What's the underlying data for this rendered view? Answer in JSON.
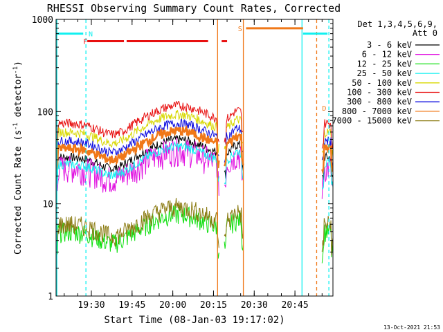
{
  "chart_data": {
    "type": "line",
    "title": "RHESSI Observing Summary Count Rates, Corrected",
    "xlabel": "Start Time (08-Jan-03 19:17:02)",
    "ylabel_main": "Corrected Count Rate (s",
    "ylabel_sup1": "-1",
    "ylabel_mid": " detector",
    "ylabel_sup2": "-1",
    "ylabel_end": ")",
    "yscale": "log",
    "ylim": [
      1,
      1000
    ],
    "xlim_min": [
      17,
      119
    ],
    "y_ticks": [
      {
        "value": 1,
        "label": "1"
      },
      {
        "value": 10,
        "label": "10"
      },
      {
        "value": 100,
        "label": "100"
      },
      {
        "value": 1000,
        "label": "1000"
      }
    ],
    "x_ticks": [
      {
        "value": 30,
        "label": "19:30"
      },
      {
        "value": 45,
        "label": "19:45"
      },
      {
        "value": 60,
        "label": "20:00"
      },
      {
        "value": 75,
        "label": "20:15"
      },
      {
        "value": 90,
        "label": "20:30"
      },
      {
        "value": 105,
        "label": "20:45"
      }
    ],
    "legend_header": [
      "Det 1,3,4,5,6,9,",
      "Att 0"
    ],
    "series": [
      {
        "name": "3 - 6 keV",
        "color": "#000000",
        "base": 32
      },
      {
        "name": "6 - 12 keV",
        "color": "#e010e0",
        "base": 25
      },
      {
        "name": "12 - 25 keV",
        "color": "#10e010",
        "base": 5
      },
      {
        "name": "25 - 50 keV",
        "color": "#10f0f0",
        "base": 27
      },
      {
        "name": "50 - 100 keV",
        "color": "#d8d800",
        "base": 60
      },
      {
        "name": "100 - 300 keV",
        "color": "#e81010",
        "base": 75
      },
      {
        "name": "300 - 800 keV",
        "color": "#1010e0",
        "base": 48
      },
      {
        "name": "800 - 7000 keV",
        "color": "#f07818",
        "base": 40
      },
      {
        "name": "7000 - 15000 keV",
        "color": "#8a7a10",
        "base": 6
      }
    ],
    "segments": [
      [
        17,
        77
      ],
      [
        79,
        86
      ],
      [
        115,
        119
      ]
    ],
    "flags": [
      {
        "label": "N",
        "color": "#10f0f0",
        "level": 700,
        "ranges": [
          [
            17,
            27
          ]
        ],
        "label_min": 29
      },
      {
        "label": "F",
        "color": "#e81010",
        "level": 580,
        "ranges": [
          [
            28.5,
            42
          ],
          [
            43,
            73
          ],
          [
            78,
            80
          ]
        ],
        "label_min": 27
      },
      {
        "label": "S",
        "color": "#f07818",
        "level": 800,
        "ranges": [
          [
            87,
            108
          ]
        ],
        "label_min": 84
      },
      {
        "label": "",
        "color": "#10f0f0",
        "level": 700,
        "ranges": [
          [
            108,
            117
          ]
        ],
        "label_min": 0
      }
    ],
    "vlines": [
      {
        "x": 17.3,
        "color": "#10f0f0",
        "style": "solid"
      },
      {
        "x": 28,
        "color": "#10f0f0",
        "style": "dashed"
      },
      {
        "x": 76.5,
        "color": "#f07818",
        "style": "solid"
      },
      {
        "x": 86,
        "color": "#f07818",
        "style": "solid"
      },
      {
        "x": 107.6,
        "color": "#10f0f0",
        "style": "solid"
      },
      {
        "x": 113,
        "color": "#f07818",
        "style": "dashed"
      },
      {
        "x": 117.5,
        "color": "#10f0f0",
        "style": "dashed"
      }
    ],
    "marker": {
      "label": "D",
      "x": 115,
      "value": 110,
      "color": "#f07818"
    }
  },
  "footer": {
    "timestamp": "13-Oct-2021 21:53"
  }
}
